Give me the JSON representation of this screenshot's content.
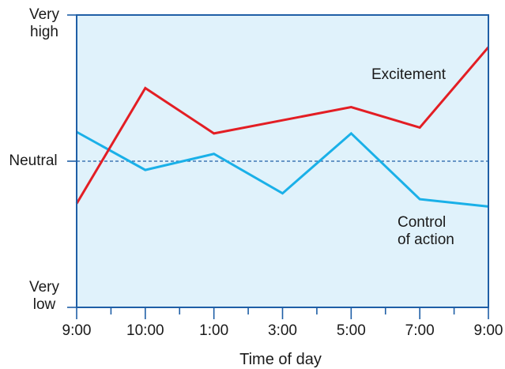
{
  "chart_data": {
    "type": "line",
    "xlabel": "Time of day",
    "ylabel": "",
    "categories": [
      "9:00",
      "10:00",
      "1:00",
      "3:00",
      "5:00",
      "7:00",
      "9:00"
    ],
    "ytick_labels": {
      "top": [
        "Very",
        "high"
      ],
      "middle": "Neutral",
      "bottom": [
        "Very",
        "low"
      ]
    },
    "ylim": [
      -1,
      1
    ],
    "reference_line": {
      "label": "Neutral",
      "value": 0,
      "style": "dashed"
    },
    "series": [
      {
        "name": "Excitement",
        "color": "#e31e24",
        "values": [
          -0.29,
          0.5,
          0.19,
          0.28,
          0.37,
          0.23,
          0.78
        ]
      },
      {
        "name": "Control of action",
        "name_lines": [
          "Control",
          "of action"
        ],
        "color": "#1ab0e8",
        "values": [
          0.2,
          -0.06,
          0.05,
          -0.22,
          0.19,
          -0.26,
          -0.31
        ]
      }
    ],
    "grid": false,
    "background": "#e0f2fb",
    "axis_color": "#1f5fa6"
  }
}
